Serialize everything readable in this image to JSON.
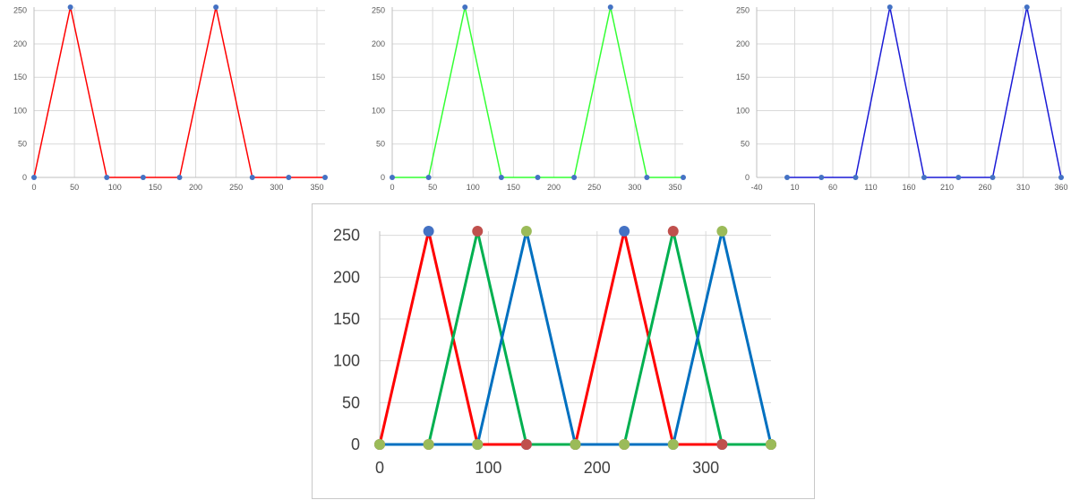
{
  "chart_data": [
    {
      "type": "line",
      "title": "",
      "color": "#ff0000",
      "marker_color": "#4472c4",
      "x": [
        0,
        45,
        90,
        135,
        180,
        225,
        270,
        315,
        360
      ],
      "y": [
        0,
        255,
        0,
        0,
        0,
        255,
        0,
        0,
        0
      ],
      "xlim": [
        0,
        360
      ],
      "ylim": [
        0,
        255
      ],
      "xticks": [
        "0",
        "50",
        "100",
        "150",
        "200",
        "250",
        "300",
        "350"
      ],
      "yticks": [
        "0",
        "50",
        "100",
        "150",
        "200",
        "250"
      ],
      "grid": true
    },
    {
      "type": "line",
      "title": "",
      "color": "#33ff33",
      "marker_color": "#4472c4",
      "x": [
        0,
        45,
        90,
        135,
        180,
        225,
        270,
        315,
        360
      ],
      "y": [
        0,
        0,
        255,
        0,
        0,
        0,
        255,
        0,
        0
      ],
      "xlim": [
        0,
        360
      ],
      "ylim": [
        0,
        255
      ],
      "xticks": [
        "0",
        "50",
        "100",
        "150",
        "200",
        "250",
        "300",
        "350"
      ],
      "yticks": [
        "0",
        "50",
        "100",
        "150",
        "200",
        "250"
      ],
      "grid": true
    },
    {
      "type": "line",
      "title": "",
      "color": "#1a1ad6",
      "marker_color": "#4472c4",
      "x": [
        0,
        45,
        90,
        135,
        180,
        225,
        270,
        315,
        360
      ],
      "y": [
        0,
        0,
        0,
        255,
        0,
        0,
        0,
        255,
        0
      ],
      "xlim": [
        -40,
        360
      ],
      "ylim": [
        0,
        255
      ],
      "xticks": [
        "-40",
        "10",
        "60",
        "110",
        "160",
        "210",
        "260",
        "310",
        "360"
      ],
      "yticks": [
        "0",
        "50",
        "100",
        "150",
        "200",
        "250"
      ],
      "grid": true
    },
    {
      "type": "line",
      "title": "",
      "x": [
        0,
        45,
        90,
        135,
        180,
        225,
        270,
        315,
        360
      ],
      "xlim": [
        0,
        360
      ],
      "ylim": [
        0,
        255
      ],
      "xticks": [
        "0",
        "100",
        "200",
        "300"
      ],
      "yticks": [
        "0",
        "50",
        "100",
        "150",
        "200",
        "250"
      ],
      "grid": true,
      "series": [
        {
          "color": "#ff0000",
          "marker_color": "#4472c4",
          "values": [
            0,
            255,
            0,
            0,
            0,
            255,
            0,
            0,
            0
          ]
        },
        {
          "color": "#00b050",
          "marker_color": "#c0504d",
          "values": [
            0,
            0,
            255,
            0,
            0,
            0,
            255,
            0,
            0
          ]
        },
        {
          "color": "#0070c0",
          "marker_color": "#9bbb59",
          "values": [
            0,
            0,
            0,
            255,
            0,
            0,
            0,
            255,
            0
          ]
        }
      ]
    }
  ]
}
